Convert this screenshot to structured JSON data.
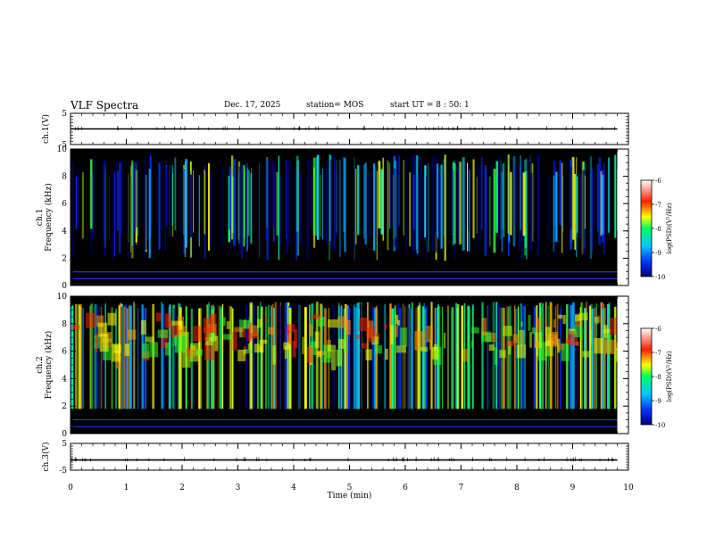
{
  "header": {
    "title": "VLF Spectra",
    "date": "Dec. 17, 2025",
    "station": "station= MOS",
    "start": "start  UT  =   8  : 50: 1"
  },
  "chart_data": [
    {
      "type": "line",
      "panel": "ch1-waveform",
      "ylabel": "ch.1(V)",
      "ylim": [
        -5,
        5
      ],
      "yticks": [
        "5",
        "-5"
      ],
      "xlim": [
        0,
        10
      ],
      "series": [
        {
          "values": [
            0
          ]
        }
      ]
    },
    {
      "type": "heatmap",
      "panel": "ch1-spectrogram",
      "ylabel": "ch.1\nFrequency (kHz)",
      "ylabel_lines": [
        "ch.1",
        "Frequency (kHz)"
      ],
      "ylim": [
        0,
        10
      ],
      "yticks": [
        "0",
        "2",
        "4",
        "6",
        "8",
        "10"
      ],
      "xlim": [
        0,
        10
      ],
      "data_extent_x": [
        0,
        9.8
      ],
      "colorbar": {
        "label": "log(PSD)(V²/Hz)",
        "ticks": [
          "-6",
          "-7",
          "-8",
          "-9",
          "-10"
        ],
        "range": [
          -10,
          -6
        ]
      }
    },
    {
      "type": "heatmap",
      "panel": "ch2-spectrogram",
      "ylabel": "ch.2\nFrequency (kHz)",
      "ylabel_lines": [
        "ch.2",
        "Frequency (kHz)"
      ],
      "ylim": [
        0,
        10
      ],
      "yticks": [
        "0",
        "2",
        "4",
        "6",
        "8",
        "10"
      ],
      "xlim": [
        0,
        10
      ],
      "data_extent_x": [
        0,
        9.8
      ],
      "colorbar": {
        "label": "log(PSD)(V²/Hz)",
        "ticks": [
          "-6",
          "-7",
          "-8",
          "-9",
          "-10"
        ],
        "range": [
          -10,
          -6
        ]
      }
    },
    {
      "type": "line",
      "panel": "ch3-waveform",
      "ylabel": "ch.3(V)",
      "ylim": [
        -5,
        5
      ],
      "yticks": [
        "5",
        "-5"
      ],
      "xlim": [
        0,
        10
      ],
      "xlabel": "Time  (min)",
      "xticks": [
        "0",
        "1",
        "2",
        "3",
        "4",
        "5",
        "6",
        "7",
        "8",
        "9",
        "10"
      ],
      "series": [
        {
          "values": [
            -1.2
          ]
        }
      ]
    }
  ]
}
